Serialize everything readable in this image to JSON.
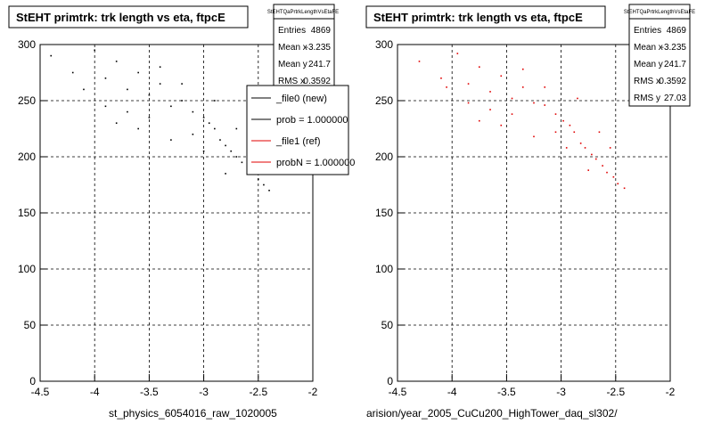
{
  "panels": [
    {
      "title": "StEHT primtrk: trk length vs eta, ftpcE",
      "stats": {
        "name": "StEHTQaPrtrkLengthVsEtaFE",
        "rows": [
          {
            "label": "Entries",
            "value": "4869"
          },
          {
            "label": "Mean x",
            "value": "-3.235"
          },
          {
            "label": "Mean y",
            "value": "241.7"
          },
          {
            "label": "RMS x",
            "value": "0.3592"
          }
        ]
      },
      "bottom_label": "st_physics_6054016_raw_1020005",
      "marker_color": "#000000"
    },
    {
      "title": "StEHT primtrk: trk length vs eta, ftpcE",
      "stats": {
        "name": "StEHTQaPrtrkLengthVsEtaFE",
        "rows": [
          {
            "label": "Entries",
            "value": "4869"
          },
          {
            "label": "Mean x",
            "value": "-3.235"
          },
          {
            "label": "Mean y",
            "value": "241.7"
          },
          {
            "label": "RMS x",
            "value": "0.3592"
          },
          {
            "label": "RMS y",
            "value": "27.03"
          }
        ]
      },
      "bottom_label": "arision/year_2005_CuCu200_HighTower_daq_sl302/",
      "marker_color": "#e00000"
    }
  ],
  "legend": {
    "entries": [
      {
        "label": "_file0 (new)",
        "color": "#000000"
      },
      {
        "label": "prob = 1.000000",
        "color": "#000000"
      },
      {
        "label": "_file1 (ref)",
        "color": "#e00000"
      },
      {
        "label": "probN = 1.000000",
        "color": "#e00000"
      }
    ]
  },
  "chart_data": [
    {
      "type": "scatter",
      "title": "StEHT primtrk: trk length vs eta, ftpcE",
      "xlabel": "",
      "ylabel": "",
      "xlim": [
        -4.5,
        -2
      ],
      "ylim": [
        0,
        300
      ],
      "x_ticks": [
        "-4.5",
        "-4",
        "-3.5",
        "-3",
        "-2.5",
        "-2"
      ],
      "y_ticks": [
        "0",
        "50",
        "100",
        "150",
        "200",
        "250",
        "300"
      ],
      "grid": true,
      "series": [
        {
          "color": "#000000",
          "entries": 4869,
          "mean_x": -3.235,
          "mean_y": 241.7,
          "rms_x": 0.3592,
          "rms_y": 27.03,
          "points": [
            [
              -4.4,
              290
            ],
            [
              -4.2,
              275
            ],
            [
              -4.0,
              295
            ],
            [
              -3.9,
              270
            ],
            [
              -3.8,
              285
            ],
            [
              -3.7,
              260
            ],
            [
              -3.6,
              275
            ],
            [
              -3.5,
              255
            ],
            [
              -3.4,
              265
            ],
            [
              -3.3,
              245
            ],
            [
              -3.2,
              250
            ],
            [
              -3.1,
              240
            ],
            [
              -3.0,
              235
            ],
            [
              -2.95,
              230
            ],
            [
              -2.9,
              225
            ],
            [
              -2.85,
              215
            ],
            [
              -2.8,
              210
            ],
            [
              -2.75,
              205
            ],
            [
              -2.7,
              200
            ],
            [
              -2.65,
              195
            ],
            [
              -2.6,
              190
            ],
            [
              -2.55,
              185
            ],
            [
              -2.5,
              180
            ],
            [
              -2.45,
              175
            ],
            [
              -2.4,
              170
            ],
            [
              -3.6,
              225
            ],
            [
              -3.3,
              215
            ],
            [
              -3.0,
              205
            ],
            [
              -2.8,
              185
            ],
            [
              -3.9,
              245
            ],
            [
              -3.5,
              235
            ],
            [
              -3.2,
              265
            ],
            [
              -2.9,
              250
            ],
            [
              -3.7,
              240
            ],
            [
              -3.1,
              220
            ],
            [
              -2.7,
              225
            ],
            [
              -3.4,
              280
            ],
            [
              -3.8,
              230
            ],
            [
              -4.1,
              260
            ],
            [
              -2.6,
              205
            ]
          ]
        }
      ]
    },
    {
      "type": "scatter",
      "title": "StEHT primtrk: trk length vs eta, ftpcE",
      "xlabel": "",
      "ylabel": "",
      "xlim": [
        -4.5,
        -2
      ],
      "ylim": [
        0,
        300
      ],
      "x_ticks": [
        "-4.5",
        "-4",
        "-3.5",
        "-3",
        "-2.5",
        "-2"
      ],
      "y_ticks": [
        "0",
        "50",
        "100",
        "150",
        "200",
        "250",
        "300"
      ],
      "grid": true,
      "series": [
        {
          "color": "#e00000",
          "entries": 4869,
          "mean_x": -3.235,
          "mean_y": 241.7,
          "rms_x": 0.3592,
          "rms_y": 27.03,
          "points": [
            [
              -4.3,
              285
            ],
            [
              -4.1,
              270
            ],
            [
              -3.95,
              292
            ],
            [
              -3.85,
              265
            ],
            [
              -3.75,
              280
            ],
            [
              -3.65,
              258
            ],
            [
              -3.55,
              272
            ],
            [
              -3.45,
              252
            ],
            [
              -3.35,
              262
            ],
            [
              -3.25,
              248
            ],
            [
              -3.15,
              246
            ],
            [
              -3.05,
              238
            ],
            [
              -2.98,
              232
            ],
            [
              -2.92,
              228
            ],
            [
              -2.88,
              222
            ],
            [
              -2.82,
              212
            ],
            [
              -2.78,
              208
            ],
            [
              -2.72,
              202
            ],
            [
              -2.68,
              198
            ],
            [
              -2.62,
              192
            ],
            [
              -2.58,
              186
            ],
            [
              -2.52,
              182
            ],
            [
              -2.48,
              176
            ],
            [
              -2.42,
              172
            ],
            [
              -3.55,
              228
            ],
            [
              -3.25,
              218
            ],
            [
              -2.95,
              208
            ],
            [
              -2.75,
              188
            ],
            [
              -3.85,
              248
            ],
            [
              -3.45,
              238
            ],
            [
              -3.15,
              262
            ],
            [
              -2.85,
              252
            ],
            [
              -3.65,
              242
            ],
            [
              -3.05,
              222
            ],
            [
              -2.65,
              222
            ],
            [
              -3.35,
              278
            ],
            [
              -3.75,
              232
            ],
            [
              -4.05,
              262
            ],
            [
              -2.55,
              208
            ]
          ]
        }
      ]
    }
  ]
}
